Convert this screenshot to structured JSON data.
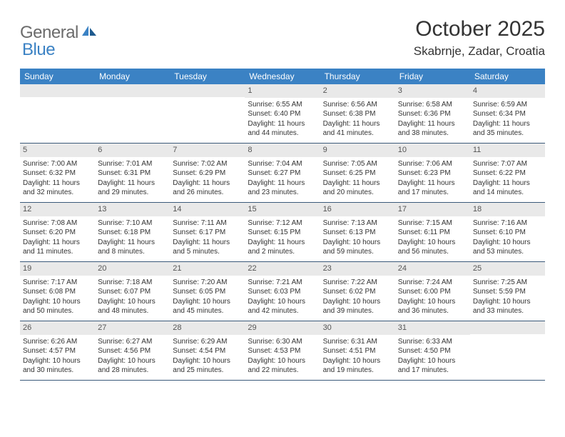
{
  "logo": {
    "text1": "General",
    "text2": "Blue"
  },
  "title": "October 2025",
  "location": "Skabrnje, Zadar, Croatia",
  "header_bg": "#3b82c4",
  "daynum_bg": "#e9e9e9",
  "row_border": "#3b5a7a",
  "weekdays": [
    "Sunday",
    "Monday",
    "Tuesday",
    "Wednesday",
    "Thursday",
    "Friday",
    "Saturday"
  ],
  "weeks": [
    [
      null,
      null,
      null,
      {
        "n": "1",
        "sr": "6:55 AM",
        "ss": "6:40 PM",
        "dl": "11 hours and 44 minutes."
      },
      {
        "n": "2",
        "sr": "6:56 AM",
        "ss": "6:38 PM",
        "dl": "11 hours and 41 minutes."
      },
      {
        "n": "3",
        "sr": "6:58 AM",
        "ss": "6:36 PM",
        "dl": "11 hours and 38 minutes."
      },
      {
        "n": "4",
        "sr": "6:59 AM",
        "ss": "6:34 PM",
        "dl": "11 hours and 35 minutes."
      }
    ],
    [
      {
        "n": "5",
        "sr": "7:00 AM",
        "ss": "6:32 PM",
        "dl": "11 hours and 32 minutes."
      },
      {
        "n": "6",
        "sr": "7:01 AM",
        "ss": "6:31 PM",
        "dl": "11 hours and 29 minutes."
      },
      {
        "n": "7",
        "sr": "7:02 AM",
        "ss": "6:29 PM",
        "dl": "11 hours and 26 minutes."
      },
      {
        "n": "8",
        "sr": "7:04 AM",
        "ss": "6:27 PM",
        "dl": "11 hours and 23 minutes."
      },
      {
        "n": "9",
        "sr": "7:05 AM",
        "ss": "6:25 PM",
        "dl": "11 hours and 20 minutes."
      },
      {
        "n": "10",
        "sr": "7:06 AM",
        "ss": "6:23 PM",
        "dl": "11 hours and 17 minutes."
      },
      {
        "n": "11",
        "sr": "7:07 AM",
        "ss": "6:22 PM",
        "dl": "11 hours and 14 minutes."
      }
    ],
    [
      {
        "n": "12",
        "sr": "7:08 AM",
        "ss": "6:20 PM",
        "dl": "11 hours and 11 minutes."
      },
      {
        "n": "13",
        "sr": "7:10 AM",
        "ss": "6:18 PM",
        "dl": "11 hours and 8 minutes."
      },
      {
        "n": "14",
        "sr": "7:11 AM",
        "ss": "6:17 PM",
        "dl": "11 hours and 5 minutes."
      },
      {
        "n": "15",
        "sr": "7:12 AM",
        "ss": "6:15 PM",
        "dl": "11 hours and 2 minutes."
      },
      {
        "n": "16",
        "sr": "7:13 AM",
        "ss": "6:13 PM",
        "dl": "10 hours and 59 minutes."
      },
      {
        "n": "17",
        "sr": "7:15 AM",
        "ss": "6:11 PM",
        "dl": "10 hours and 56 minutes."
      },
      {
        "n": "18",
        "sr": "7:16 AM",
        "ss": "6:10 PM",
        "dl": "10 hours and 53 minutes."
      }
    ],
    [
      {
        "n": "19",
        "sr": "7:17 AM",
        "ss": "6:08 PM",
        "dl": "10 hours and 50 minutes."
      },
      {
        "n": "20",
        "sr": "7:18 AM",
        "ss": "6:07 PM",
        "dl": "10 hours and 48 minutes."
      },
      {
        "n": "21",
        "sr": "7:20 AM",
        "ss": "6:05 PM",
        "dl": "10 hours and 45 minutes."
      },
      {
        "n": "22",
        "sr": "7:21 AM",
        "ss": "6:03 PM",
        "dl": "10 hours and 42 minutes."
      },
      {
        "n": "23",
        "sr": "7:22 AM",
        "ss": "6:02 PM",
        "dl": "10 hours and 39 minutes."
      },
      {
        "n": "24",
        "sr": "7:24 AM",
        "ss": "6:00 PM",
        "dl": "10 hours and 36 minutes."
      },
      {
        "n": "25",
        "sr": "7:25 AM",
        "ss": "5:59 PM",
        "dl": "10 hours and 33 minutes."
      }
    ],
    [
      {
        "n": "26",
        "sr": "6:26 AM",
        "ss": "4:57 PM",
        "dl": "10 hours and 30 minutes."
      },
      {
        "n": "27",
        "sr": "6:27 AM",
        "ss": "4:56 PM",
        "dl": "10 hours and 28 minutes."
      },
      {
        "n": "28",
        "sr": "6:29 AM",
        "ss": "4:54 PM",
        "dl": "10 hours and 25 minutes."
      },
      {
        "n": "29",
        "sr": "6:30 AM",
        "ss": "4:53 PM",
        "dl": "10 hours and 22 minutes."
      },
      {
        "n": "30",
        "sr": "6:31 AM",
        "ss": "4:51 PM",
        "dl": "10 hours and 19 minutes."
      },
      {
        "n": "31",
        "sr": "6:33 AM",
        "ss": "4:50 PM",
        "dl": "10 hours and 17 minutes."
      },
      null
    ]
  ],
  "labels": {
    "sunrise": "Sunrise:",
    "sunset": "Sunset:",
    "daylight": "Daylight:"
  }
}
